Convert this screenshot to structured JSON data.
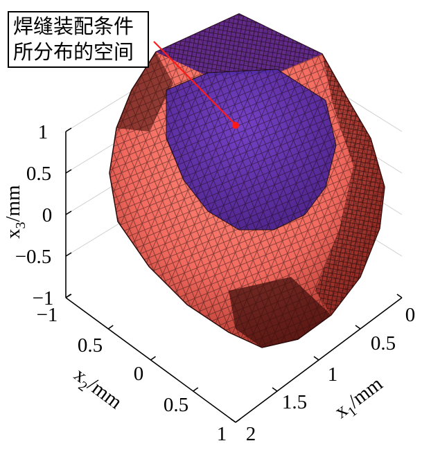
{
  "chart_data": {
    "type": "surface3d",
    "annotation": {
      "line1": "焊缝装配条件",
      "line2": "所分布的空间"
    },
    "x1_axis": {
      "label_main": "x",
      "label_sub": "1",
      "label_unit": "/mm",
      "ticks": [
        "0",
        "0.5",
        "1",
        "1.5",
        "2"
      ]
    },
    "x2_axis": {
      "label_main": "x",
      "label_sub": "2",
      "label_unit": "/mm",
      "ticks": [
        "−1",
        "0.5",
        "0",
        "0.5",
        "1"
      ]
    },
    "x3_axis": {
      "label_main": "x",
      "label_sub": "3",
      "label_unit": "/mm",
      "ticks": [
        "1",
        "0.5",
        "0",
        "−0.5",
        "−1"
      ]
    },
    "grid": true,
    "colors": {
      "outer_surface": "#f26a5f",
      "outer_surface_dark": "#b8352e",
      "inner_region": "#5a2fb8",
      "mesh": "#1a0a0a",
      "marker": "#ff1a1a"
    }
  }
}
